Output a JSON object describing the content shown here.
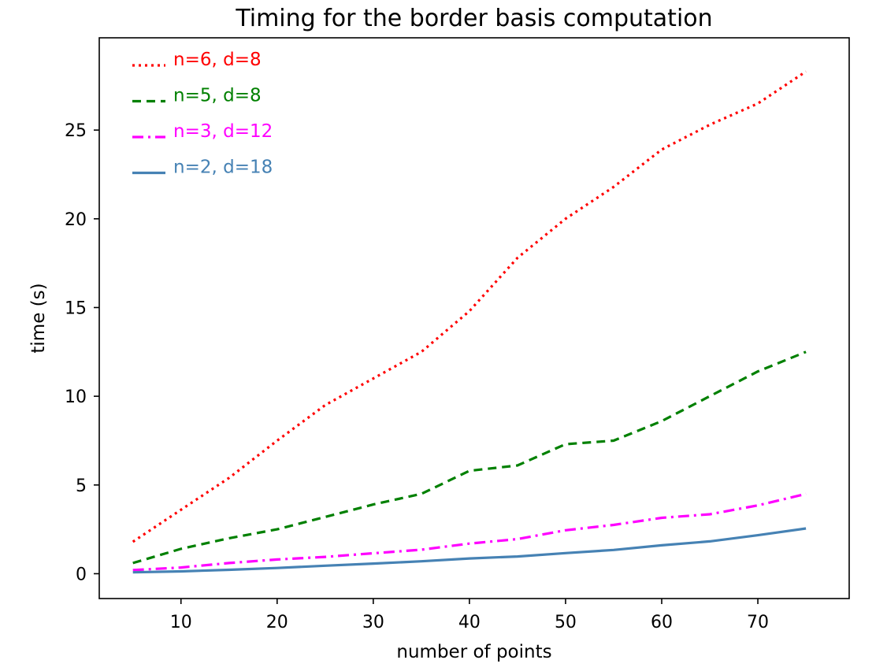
{
  "chart_data": {
    "type": "line",
    "title": "Timing for the border basis computation",
    "xlabel": "number of points",
    "ylabel": "time (s)",
    "xlim": [
      1.5,
      79.5
    ],
    "ylim": [
      -1.4,
      30.2
    ],
    "xticks": [
      10,
      20,
      30,
      40,
      50,
      60,
      70
    ],
    "yticks": [
      0,
      5,
      10,
      15,
      20,
      25
    ],
    "grid": false,
    "legend_position": "top-left",
    "x": [
      5,
      10,
      15,
      20,
      25,
      30,
      35,
      40,
      45,
      50,
      55,
      60,
      65,
      70,
      75
    ],
    "series": [
      {
        "name": "n=6, d=8",
        "color": "#ff0000",
        "style": "dotted",
        "values": [
          1.8,
          3.6,
          5.4,
          7.5,
          9.5,
          11.0,
          12.5,
          14.8,
          17.8,
          20.0,
          21.8,
          23.9,
          25.3,
          26.5,
          28.3
        ]
      },
      {
        "name": "n=5, d=8",
        "color": "#008000",
        "style": "dashed",
        "values": [
          0.6,
          1.4,
          2.0,
          2.5,
          3.2,
          3.9,
          4.5,
          5.8,
          6.1,
          7.3,
          7.5,
          8.6,
          10.0,
          11.4,
          12.5
        ]
      },
      {
        "name": "n=3, d=12",
        "color": "#ff00ff",
        "style": "dashdot",
        "values": [
          0.2,
          0.35,
          0.6,
          0.8,
          0.95,
          1.15,
          1.35,
          1.7,
          1.95,
          2.45,
          2.75,
          3.15,
          3.35,
          3.85,
          4.5
        ]
      },
      {
        "name": "n=2, d=18",
        "color": "#4682b4",
        "style": "solid",
        "values": [
          0.08,
          0.13,
          0.22,
          0.32,
          0.45,
          0.57,
          0.7,
          0.86,
          0.97,
          1.16,
          1.34,
          1.6,
          1.82,
          2.17,
          2.55
        ]
      }
    ]
  }
}
